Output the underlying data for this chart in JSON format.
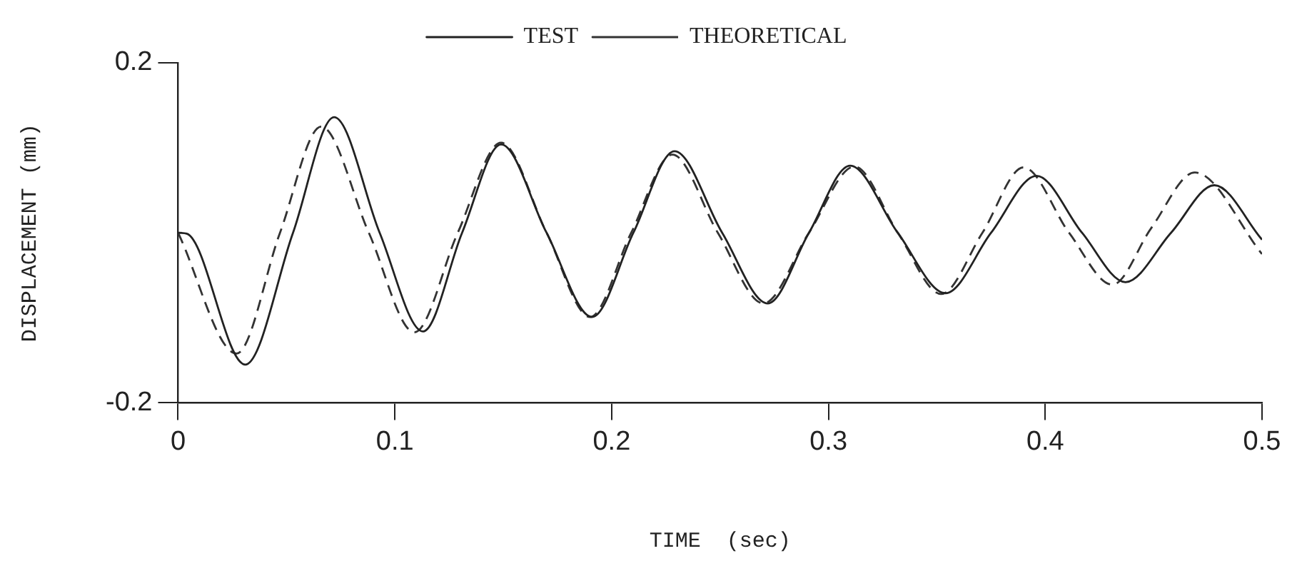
{
  "chart_data": {
    "type": "line",
    "xlabel": "TIME  (sec)",
    "ylabel": "DISPLACEMENT (mm)",
    "xlim": [
      0,
      0.5
    ],
    "xticks": [
      0,
      0.1,
      0.2,
      0.3,
      0.4,
      0.5
    ],
    "ylim": [
      -0.2,
      0.2
    ],
    "yticks": [
      -0.2,
      0.2
    ],
    "grid": false,
    "legend": "top",
    "marker": "none",
    "series": [
      {
        "name": "TEST",
        "color": "#222222",
        "line_style": "solid",
        "x": [
          0,
          0.004,
          0.031,
          0.053,
          0.072,
          0.093,
          0.113,
          0.131,
          0.149,
          0.17,
          0.191,
          0.21,
          0.229,
          0.251,
          0.272,
          0.291,
          0.31,
          0.332,
          0.354,
          0.375,
          0.396,
          0.417,
          0.437,
          0.458,
          0.478,
          0.5
        ],
        "values": [
          0,
          -0.001,
          -0.155,
          0,
          0.136,
          0,
          -0.116,
          0,
          0.104,
          0,
          -0.099,
          0,
          0.096,
          0,
          -0.083,
          0,
          0.079,
          0,
          -0.071,
          0,
          0.067,
          0,
          -0.058,
          0,
          0.056,
          -0.008
        ]
      },
      {
        "name": "THEORETICAL",
        "color": "#333333",
        "line_style": "dashed",
        "x": [
          0,
          0.027,
          0.047,
          0.066,
          0.088,
          0.109,
          0.129,
          0.149,
          0.17,
          0.19,
          0.209,
          0.228,
          0.249,
          0.27,
          0.291,
          0.312,
          0.332,
          0.352,
          0.371,
          0.39,
          0.411,
          0.431,
          0.449,
          0.469,
          0.5
        ],
        "values": [
          0,
          -0.142,
          0,
          0.125,
          0,
          -0.117,
          0,
          0.106,
          0,
          -0.099,
          0,
          0.092,
          0,
          -0.083,
          0,
          0.078,
          0,
          -0.072,
          0,
          0.077,
          0,
          -0.061,
          0.006,
          0.071,
          -0.025
        ]
      }
    ]
  }
}
